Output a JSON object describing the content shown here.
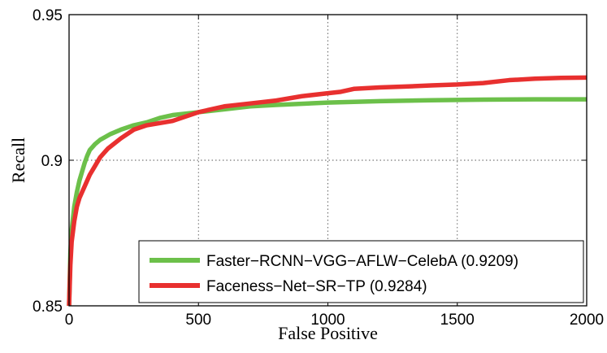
{
  "chart_data": {
    "type": "line",
    "title": "",
    "xlabel": "False Positive",
    "ylabel": "Recall",
    "xlim": [
      0,
      2000
    ],
    "ylim": [
      0.85,
      0.95
    ],
    "xticks": [
      0,
      500,
      1000,
      1500,
      2000
    ],
    "xtick_labels": [
      "0",
      "500",
      "1000",
      "1500",
      "2000"
    ],
    "yticks": [
      0.85,
      0.9,
      0.95
    ],
    "ytick_labels": [
      "0.85",
      "0.9",
      "0.95"
    ],
    "grid": true,
    "legend_position": "bottom-right",
    "series": [
      {
        "name": "Faster−RCNN−VGG−AFLW−CelebA (0.9209)",
        "color": "#6cc04a",
        "x": [
          0,
          5,
          10,
          20,
          30,
          40,
          50,
          60,
          70,
          80,
          90,
          100,
          120,
          140,
          160,
          200,
          250,
          300,
          350,
          400,
          500,
          600,
          700,
          800,
          1000,
          1200,
          1400,
          1600,
          1800,
          2000
        ],
        "y": [
          0.85,
          0.868,
          0.876,
          0.884,
          0.889,
          0.893,
          0.896,
          0.899,
          0.9015,
          0.9035,
          0.9045,
          0.9055,
          0.907,
          0.908,
          0.909,
          0.9105,
          0.912,
          0.913,
          0.9145,
          0.9155,
          0.9165,
          0.9175,
          0.9185,
          0.919,
          0.9198,
          0.9203,
          0.9206,
          0.9208,
          0.9209,
          0.9209
        ]
      },
      {
        "name": "Faceness−Net−SR−TP (0.9284)",
        "color": "#e8302f",
        "x": [
          0,
          5,
          10,
          20,
          30,
          40,
          50,
          60,
          80,
          100,
          120,
          150,
          200,
          250,
          300,
          400,
          500,
          600,
          700,
          800,
          900,
          1000,
          1050,
          1100,
          1200,
          1300,
          1400,
          1500,
          1600,
          1700,
          1800,
          1900,
          2000
        ],
        "y": [
          0.85,
          0.864,
          0.872,
          0.879,
          0.884,
          0.887,
          0.889,
          0.891,
          0.895,
          0.898,
          0.901,
          0.904,
          0.9075,
          0.9105,
          0.912,
          0.9135,
          0.9165,
          0.9185,
          0.9195,
          0.9205,
          0.922,
          0.923,
          0.9235,
          0.9245,
          0.925,
          0.9253,
          0.9257,
          0.926,
          0.9265,
          0.9275,
          0.928,
          0.9283,
          0.9284
        ]
      }
    ]
  }
}
